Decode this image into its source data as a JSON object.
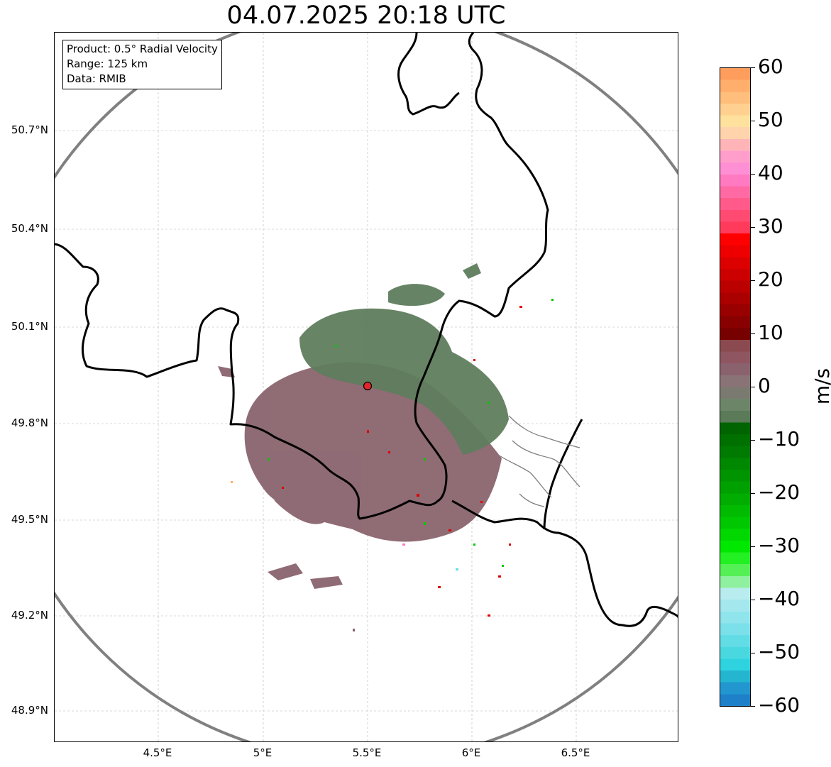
{
  "title": "04.07.2025 20:18 UTC",
  "info": {
    "product": "Product: 0.5° Radial Velocity",
    "range": "Range: 125 km",
    "source": "Data: RMIB"
  },
  "axes": {
    "lat_ticks": [
      "50.7°N",
      "50.4°N",
      "50.1°N",
      "49.8°N",
      "49.5°N",
      "49.2°N",
      "48.9°N"
    ],
    "lon_ticks": [
      "4.5°E",
      "5°E",
      "5.5°E",
      "6°E",
      "6.5°E"
    ]
  },
  "colorbar": {
    "unit": "m/s",
    "ticks": [
      "60",
      "50",
      "40",
      "30",
      "20",
      "10",
      "0",
      "−10",
      "−20",
      "−30",
      "−40",
      "−50",
      "−60"
    ],
    "range": [
      -60,
      60
    ],
    "colors_top_to_bottom": [
      "#ff9d5c",
      "#ffae6b",
      "#ffbe7c",
      "#ffd08f",
      "#ffe19e",
      "#ffd4ac",
      "#ffb5b8",
      "#ff9ecb",
      "#ff8fd4",
      "#ff7ac0",
      "#ff6aa4",
      "#ff5a8a",
      "#ff4a72",
      "#ff3a5a",
      "#ff0000",
      "#ee0000",
      "#dd0000",
      "#cc0000",
      "#bb0000",
      "#aa0000",
      "#990000",
      "#880000",
      "#770000",
      "#8a4a4f",
      "#8f5560",
      "#8a626e",
      "#8a7376",
      "#7a7a70",
      "#6c8569",
      "#5a7a58",
      "#006400",
      "#007000",
      "#007a00",
      "#008800",
      "#009400",
      "#00a000",
      "#00ad00",
      "#00bb00",
      "#00c800",
      "#00d800",
      "#00e800",
      "#22f022",
      "#55f055",
      "#8ff0a0",
      "#b8ecef",
      "#a4e8ee",
      "#90e4ec",
      "#7ce0ea",
      "#62dde6",
      "#4ad8e0",
      "#2ed3df",
      "#24b6d1",
      "#2196cf",
      "#1e80c8"
    ]
  },
  "map": {
    "radar_site": {
      "lat": 49.914,
      "lon": 5.505,
      "color": "#e3262b"
    },
    "range_ring_color": "#808080",
    "border_color": "#000000",
    "echo_colors": {
      "approaching": "#5f7d5d",
      "receding": "#8a646e"
    }
  }
}
